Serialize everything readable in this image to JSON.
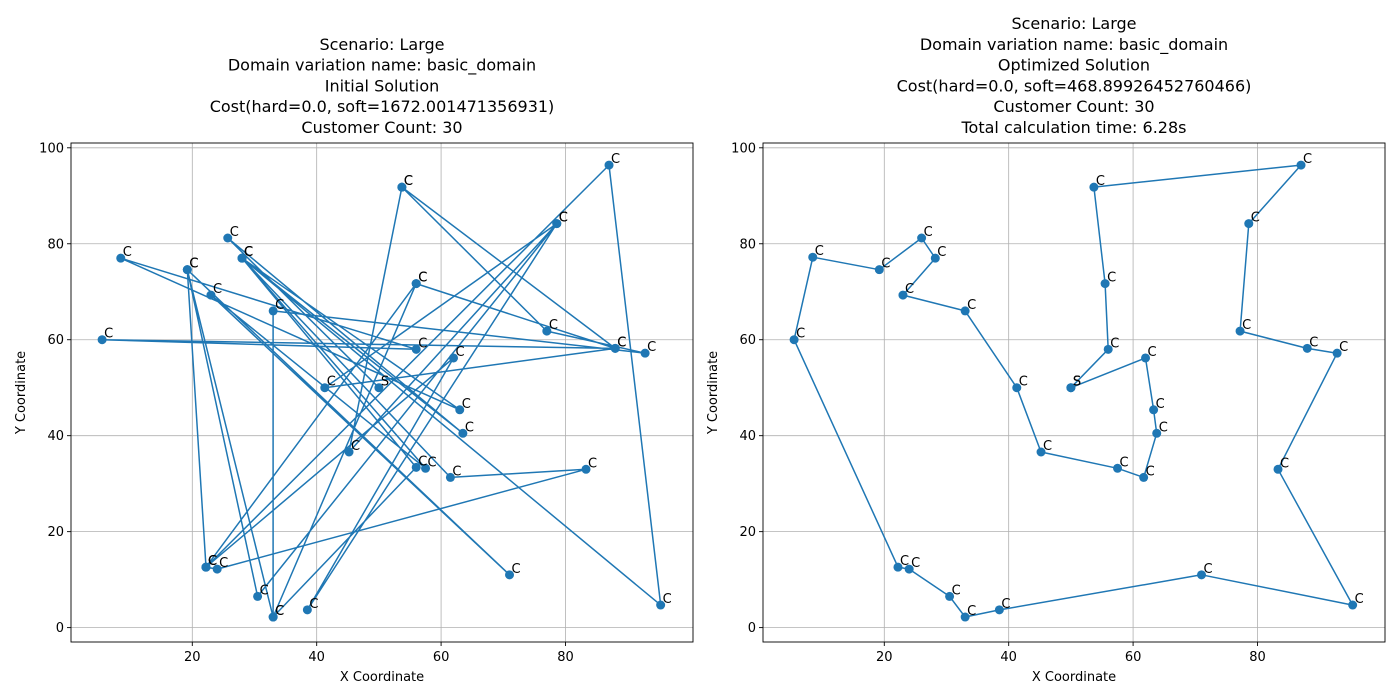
{
  "chart_data": [
    {
      "type": "line",
      "title_lines": [
        "Scenario: Large",
        " Domain variation name: basic_domain",
        "Initial Solution",
        "Cost(hard=0.0, soft=1672.001471356931)",
        "Customer Count: 30"
      ],
      "xlabel": "X Coordinate",
      "ylabel": "Y Coordinate",
      "xlim": [
        0.5,
        100.5
      ],
      "ylim": [
        -3,
        101
      ],
      "xticks": [
        20,
        40,
        60,
        80
      ],
      "yticks": [
        0,
        20,
        40,
        60,
        80,
        100
      ],
      "grid": true,
      "color": "#1f77b4",
      "series": [
        {
          "points": [
            {
              "x": 50,
              "y": 50,
              "label": "S"
            },
            {
              "x": 25.7,
              "y": 81.2,
              "label": "C"
            },
            {
              "x": 63.5,
              "y": 40.5,
              "label": "C"
            },
            {
              "x": 28,
              "y": 77,
              "label": "C"
            },
            {
              "x": 57.5,
              "y": 33.2,
              "label": "C"
            },
            {
              "x": 23,
              "y": 69.3,
              "label": "C"
            },
            {
              "x": 71,
              "y": 11,
              "label": "C"
            },
            {
              "x": 19.2,
              "y": 74.6,
              "label": "C"
            },
            {
              "x": 22.2,
              "y": 12.6,
              "label": "C"
            },
            {
              "x": 56,
              "y": 71.7,
              "label": "C"
            },
            {
              "x": 88,
              "y": 58.2,
              "label": "C"
            },
            {
              "x": 53.7,
              "y": 91.8,
              "label": "C"
            },
            {
              "x": 45.2,
              "y": 36.6,
              "label": "C"
            },
            {
              "x": 78.6,
              "y": 84.2,
              "label": "C"
            },
            {
              "x": 30.5,
              "y": 6.5,
              "label": "C"
            },
            {
              "x": 19.2,
              "y": 74.6,
              "label": "C"
            },
            {
              "x": 33,
              "y": 2.2,
              "label": "C"
            },
            {
              "x": 56,
              "y": 71.7,
              "label": "C"
            },
            {
              "x": 22.2,
              "y": 12.6,
              "label": "C"
            },
            {
              "x": 62,
              "y": 56.2,
              "label": "C"
            },
            {
              "x": 38.5,
              "y": 3.7,
              "label": "C"
            },
            {
              "x": 78.6,
              "y": 84.2,
              "label": "C"
            },
            {
              "x": 41.3,
              "y": 50,
              "label": "C"
            },
            {
              "x": 88,
              "y": 58.2,
              "label": "C"
            },
            {
              "x": 5.5,
              "y": 60,
              "label": "C"
            },
            {
              "x": 56,
              "y": 58,
              "label": "C"
            },
            {
              "x": 8.5,
              "y": 77,
              "label": "C"
            },
            {
              "x": 63,
              "y": 45.4,
              "label": "C"
            },
            {
              "x": 28,
              "y": 77,
              "label": "C"
            },
            {
              "x": 95.3,
              "y": 4.7,
              "label": "C"
            },
            {
              "x": 87,
              "y": 96.4,
              "label": "C"
            },
            {
              "x": 22.2,
              "y": 12.6,
              "label": "C"
            },
            {
              "x": 24,
              "y": 12.2,
              "label": "C"
            },
            {
              "x": 83.3,
              "y": 33,
              "label": "C"
            },
            {
              "x": 61.5,
              "y": 31.3,
              "label": "C"
            },
            {
              "x": 28,
              "y": 77,
              "label": "C"
            },
            {
              "x": 56,
              "y": 33.4,
              "label": "C"
            },
            {
              "x": 33,
              "y": 2.2,
              "label": "C"
            },
            {
              "x": 33,
              "y": 66,
              "label": "C"
            },
            {
              "x": 92.8,
              "y": 57.2,
              "label": "C"
            },
            {
              "x": 77,
              "y": 61.8,
              "label": "C"
            },
            {
              "x": 53.7,
              "y": 91.8,
              "label": "C"
            }
          ]
        }
      ]
    },
    {
      "type": "line",
      "title_lines": [
        "Scenario: Large",
        " Domain variation name: basic_domain",
        "Optimized Solution",
        "Cost(hard=0.0, soft=468.89926452760466)",
        "Customer Count: 30",
        "Total calculation time: 6.28s"
      ],
      "xlabel": "X Coordinate",
      "ylabel": "Y Coordinate",
      "xlim": [
        0.5,
        100.5
      ],
      "ylim": [
        -3,
        101
      ],
      "xticks": [
        20,
        40,
        60,
        80
      ],
      "yticks": [
        0,
        20,
        40,
        60,
        80,
        100
      ],
      "grid": true,
      "color": "#1f77b4",
      "series": [
        {
          "points": [
            {
              "x": 50,
              "y": 50,
              "label": "S"
            },
            {
              "x": 62,
              "y": 56.2,
              "label": "C"
            },
            {
              "x": 63.3,
              "y": 45.4,
              "label": "C"
            },
            {
              "x": 63.8,
              "y": 40.5,
              "label": "C"
            },
            {
              "x": 61.7,
              "y": 31.3,
              "label": "C"
            },
            {
              "x": 57.5,
              "y": 33.2,
              "label": "C"
            },
            {
              "x": 45.2,
              "y": 36.6,
              "label": "C"
            },
            {
              "x": 41.3,
              "y": 50,
              "label": "C"
            },
            {
              "x": 33,
              "y": 66,
              "label": "C"
            },
            {
              "x": 23,
              "y": 69.3,
              "label": "C"
            },
            {
              "x": 28.2,
              "y": 77,
              "label": "C"
            },
            {
              "x": 26,
              "y": 81.2,
              "label": "C"
            },
            {
              "x": 19.2,
              "y": 74.6,
              "label": "C"
            },
            {
              "x": 8.5,
              "y": 77.2,
              "label": "C"
            },
            {
              "x": 5.5,
              "y": 60,
              "label": "C"
            },
            {
              "x": 22.2,
              "y": 12.6,
              "label": "C"
            },
            {
              "x": 24,
              "y": 12.2,
              "label": "C"
            },
            {
              "x": 30.5,
              "y": 6.5,
              "label": "C"
            },
            {
              "x": 33,
              "y": 2.2,
              "label": "C"
            },
            {
              "x": 38.5,
              "y": 3.7,
              "label": "C"
            },
            {
              "x": 71,
              "y": 11,
              "label": "C"
            },
            {
              "x": 95.3,
              "y": 4.7,
              "label": "C"
            },
            {
              "x": 83.3,
              "y": 33,
              "label": "C"
            },
            {
              "x": 92.8,
              "y": 57.2,
              "label": "C"
            },
            {
              "x": 88,
              "y": 58.2,
              "label": "C"
            },
            {
              "x": 77.2,
              "y": 61.8,
              "label": "C"
            },
            {
              "x": 78.6,
              "y": 84.2,
              "label": "C"
            },
            {
              "x": 87,
              "y": 96.4,
              "label": "C"
            },
            {
              "x": 53.7,
              "y": 91.8,
              "label": "C"
            },
            {
              "x": 55.5,
              "y": 71.7,
              "label": "C"
            },
            {
              "x": 56,
              "y": 58,
              "label": "C"
            },
            {
              "x": 50,
              "y": 50,
              "label": "S"
            }
          ]
        }
      ]
    }
  ]
}
